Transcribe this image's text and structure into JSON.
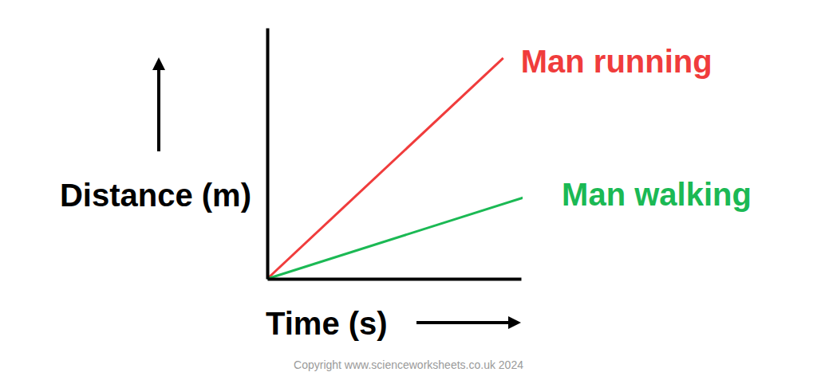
{
  "chart_data": {
    "type": "line",
    "x_label": "Time (s)",
    "y_label": "Distance (m)",
    "series": [
      {
        "name": "Man running",
        "color": "#f03c3c",
        "x": [
          0,
          9.3
        ],
        "values": [
          0,
          8.8
        ]
      },
      {
        "name": "Man walking",
        "color": "#1bb954",
        "x": [
          0,
          10.6
        ],
        "values": [
          0,
          3.4
        ]
      }
    ],
    "xlim": [
      0,
      10
    ],
    "ylim": [
      0,
      10
    ],
    "xticks": [],
    "yticks": [],
    "tick_labels": false,
    "annotations": [
      "Copyright www.scienceworksheets.co.uk 2024"
    ]
  }
}
